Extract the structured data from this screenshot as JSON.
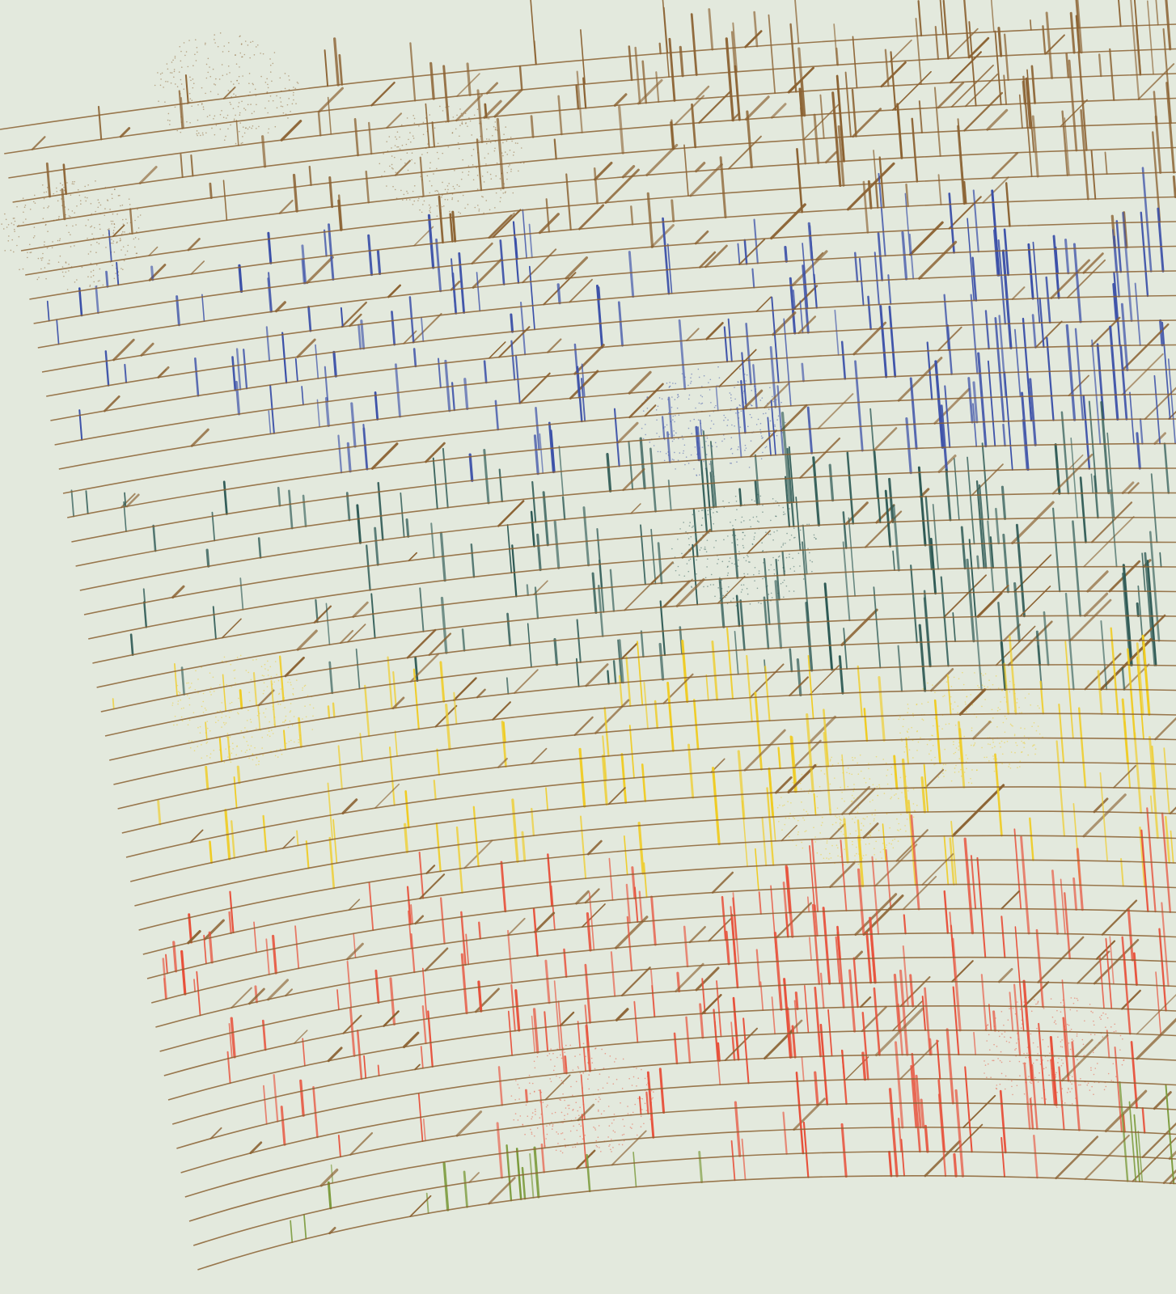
{
  "artwork": {
    "background": "#e3e9dd",
    "line_color": "#8b6232",
    "bands": [
      {
        "name": "brown",
        "color": "#8b6232"
      },
      {
        "name": "blue",
        "color": "#3a4fa8"
      },
      {
        "name": "teal",
        "color": "#2e5a55"
      },
      {
        "name": "yellow",
        "color": "#f0cc22"
      },
      {
        "name": "red",
        "color": "#e8503a"
      },
      {
        "name": "green",
        "color": "#7a9a3a"
      }
    ]
  }
}
